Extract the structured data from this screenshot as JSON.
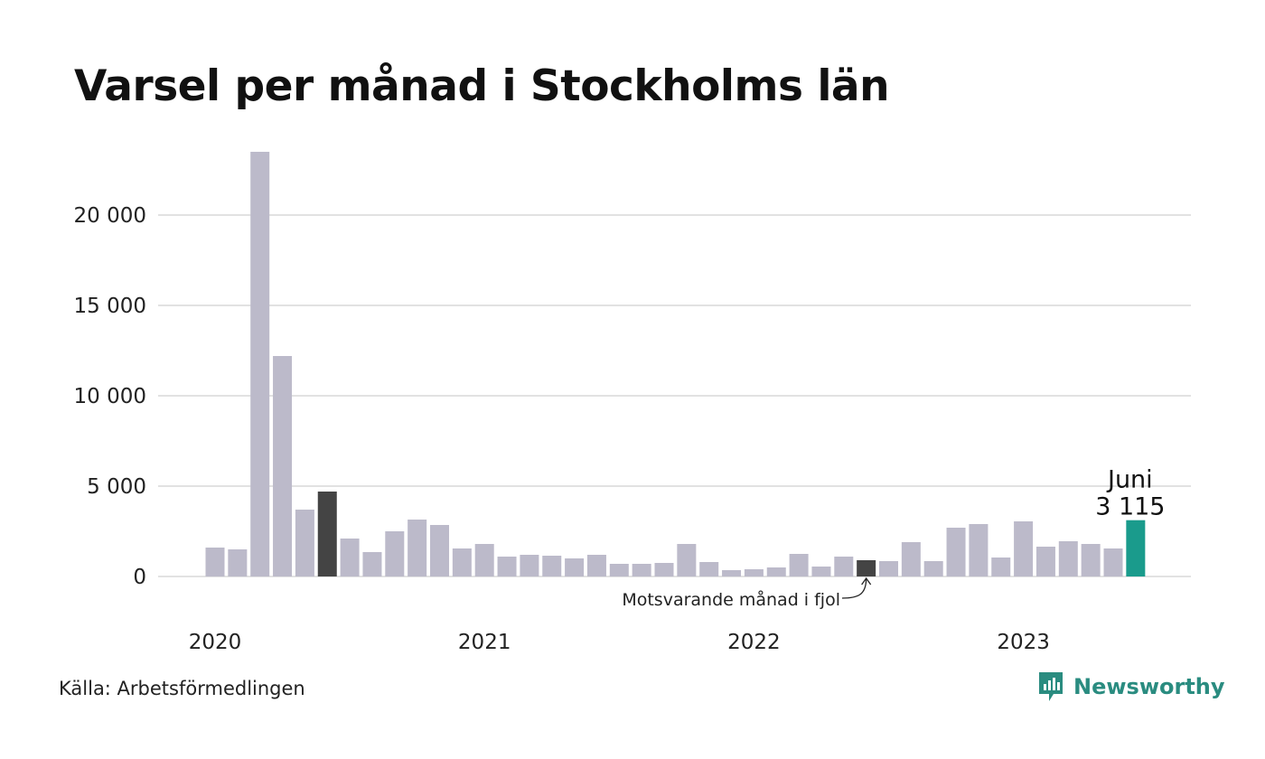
{
  "title": "Varsel per månad i Stockholms län",
  "source": "Källa: Arbetsförmedlingen",
  "brand": {
    "name": "Newsworthy",
    "icon": "newsworthy-logo-icon",
    "color": "#2a8c80"
  },
  "chart_data": {
    "type": "bar",
    "title": "Varsel per månad i Stockholms län",
    "xlabel": "",
    "ylabel": "",
    "ylim": [
      0,
      23500
    ],
    "y_ticks": [
      0,
      5000,
      10000,
      15000,
      20000
    ],
    "y_tick_labels": [
      "0",
      "5 000",
      "10 000",
      "15 000",
      "20 000"
    ],
    "year_labels": [
      {
        "label": "2020",
        "index": 0
      },
      {
        "label": "2021",
        "index": 12
      },
      {
        "label": "2022",
        "index": 24
      },
      {
        "label": "2023",
        "index": 36
      }
    ],
    "grid": true,
    "colors": {
      "default": "#bcbaca",
      "previous_year": "#444444",
      "latest": "#1a9b8c",
      "grid": "#e2e2e2"
    },
    "series": [
      {
        "values": [
          1600,
          1500,
          23500,
          12200,
          3700,
          4700,
          2100,
          1350,
          2500,
          3150,
          2850,
          1550,
          1800,
          1100,
          1200,
          1150,
          1000,
          1200,
          700,
          700,
          750,
          1800,
          800,
          350,
          400,
          500,
          1250,
          550,
          1100,
          900,
          850,
          1900,
          850,
          2700,
          2900,
          1050,
          3050,
          1650,
          1950,
          1800,
          1550,
          3115
        ],
        "highlights": {
          "previous_year": [
            5,
            29
          ],
          "latest": 41
        }
      }
    ],
    "annotations": {
      "latest_label": "Juni",
      "latest_value": "3 115",
      "previous_year_label": "Motsvarande månad i fjol"
    }
  }
}
